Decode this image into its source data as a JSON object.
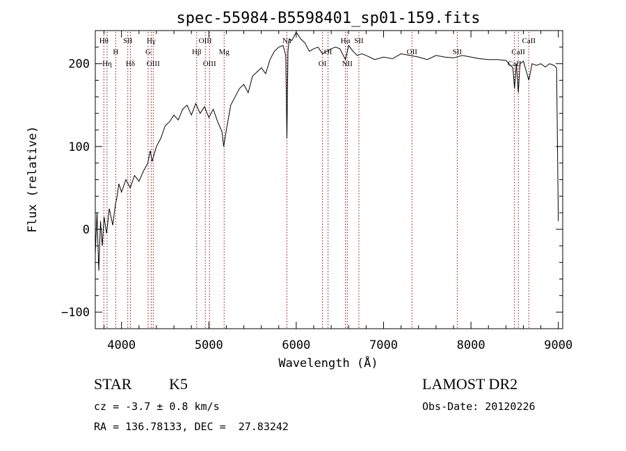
{
  "chart_data": {
    "type": "line",
    "title": "spec-55984-B5598401_sp01-159.fits",
    "xlabel": "Wavelength (Å)",
    "ylabel": "Flux (relative)",
    "xlim": [
      3700,
      9050
    ],
    "ylim": [
      -120,
      240
    ],
    "xticks": [
      4000,
      5000,
      6000,
      7000,
      8000,
      9000
    ],
    "yticks": [
      -100,
      0,
      100,
      200
    ],
    "grid": false,
    "line_color": "#000000",
    "marker_color": "#8b0000",
    "series": [
      {
        "x": [
          3700,
          3720,
          3740,
          3760,
          3780,
          3800,
          3830,
          3860,
          3900,
          3930,
          3950,
          3970,
          4000,
          4050,
          4100,
          4150,
          4200,
          4250,
          4300,
          4330,
          4350,
          4400,
          4450,
          4500,
          4550,
          4600,
          4650,
          4700,
          4750,
          4800,
          4850,
          4900,
          4950,
          5000,
          5050,
          5100,
          5150,
          5170,
          5200,
          5250,
          5300,
          5350,
          5400,
          5450,
          5500,
          5550,
          5600,
          5650,
          5700,
          5750,
          5800,
          5850,
          5880,
          5893,
          5905,
          5920,
          5950,
          6000,
          6050,
          6100,
          6150,
          6200,
          6250,
          6300,
          6350,
          6400,
          6450,
          6500,
          6563,
          6600,
          6650,
          6700,
          6750,
          6800,
          6900,
          7000,
          7100,
          7200,
          7300,
          7400,
          7500,
          7600,
          7700,
          7800,
          7900,
          8000,
          8100,
          8200,
          8300,
          8400,
          8480,
          8498,
          8520,
          8542,
          8560,
          8600,
          8662,
          8700,
          8750,
          8800,
          8850,
          8900,
          8950,
          8980,
          9000
        ],
        "y": [
          -30,
          20,
          -50,
          10,
          -20,
          15,
          -5,
          25,
          5,
          30,
          40,
          55,
          45,
          60,
          50,
          65,
          58,
          70,
          80,
          95,
          82,
          100,
          110,
          125,
          130,
          138,
          132,
          145,
          150,
          138,
          152,
          140,
          148,
          135,
          145,
          130,
          118,
          100,
          120,
          150,
          160,
          170,
          175,
          165,
          185,
          190,
          195,
          188,
          205,
          215,
          220,
          222,
          210,
          110,
          215,
          230,
          228,
          238,
          230,
          225,
          215,
          218,
          220,
          212,
          215,
          218,
          220,
          218,
          205,
          222,
          215,
          210,
          212,
          210,
          205,
          208,
          206,
          212,
          210,
          208,
          205,
          210,
          208,
          207,
          210,
          208,
          206,
          205,
          205,
          204,
          195,
          170,
          200,
          165,
          200,
          203,
          180,
          200,
          198,
          200,
          196,
          200,
          198,
          195,
          10
        ]
      }
    ],
    "lines": [
      {
        "label": "Hθ",
        "x": 3798,
        "row": 1
      },
      {
        "label": "Hη",
        "x": 3835,
        "row": 3
      },
      {
        "label": "H",
        "x": 3934,
        "row": 2
      },
      {
        "label": "SII",
        "x": 4072,
        "row": 1
      },
      {
        "label": "Hδ",
        "x": 4102,
        "row": 3
      },
      {
        "label": "Hγ",
        "x": 4340,
        "row": 1
      },
      {
        "label": "G",
        "x": 4305,
        "row": 2
      },
      {
        "label": "OIII",
        "x": 4363,
        "row": 3
      },
      {
        "label": "Hβ",
        "x": 4861,
        "row": 2
      },
      {
        "label": "OIII",
        "x": 4959,
        "row": 1
      },
      {
        "label": "OIII",
        "x": 5007,
        "row": 3
      },
      {
        "label": "Mg",
        "x": 5175,
        "row": 2
      },
      {
        "label": "Na",
        "x": 5893,
        "row": 1
      },
      {
        "label": "OI",
        "x": 6300,
        "row": 3
      },
      {
        "label": "OI",
        "x": 6364,
        "row": 2
      },
      {
        "label": "Hα",
        "x": 6563,
        "row": 1
      },
      {
        "label": "NII",
        "x": 6584,
        "row": 3
      },
      {
        "label": "SII",
        "x": 6717,
        "row": 1
      },
      {
        "label": "OII",
        "x": 7325,
        "row": 2
      },
      {
        "label": "SII",
        "x": 7843,
        "row": 2
      },
      {
        "label": "CaII",
        "x": 8498,
        "row": 3
      },
      {
        "label": "CaII",
        "x": 8542,
        "row": 2
      },
      {
        "label": "CaII",
        "x": 8662,
        "row": 1
      }
    ],
    "class_label": "STAR",
    "subclass_label": "K5",
    "cz_text": "cz = -3.7 ± 0.8 km/s",
    "coord_text": "RA = 136.78133, DEC =  27.83242",
    "survey_label": "LAMOST DR2",
    "obs_date_text": "Obs-Date: 20120226"
  }
}
